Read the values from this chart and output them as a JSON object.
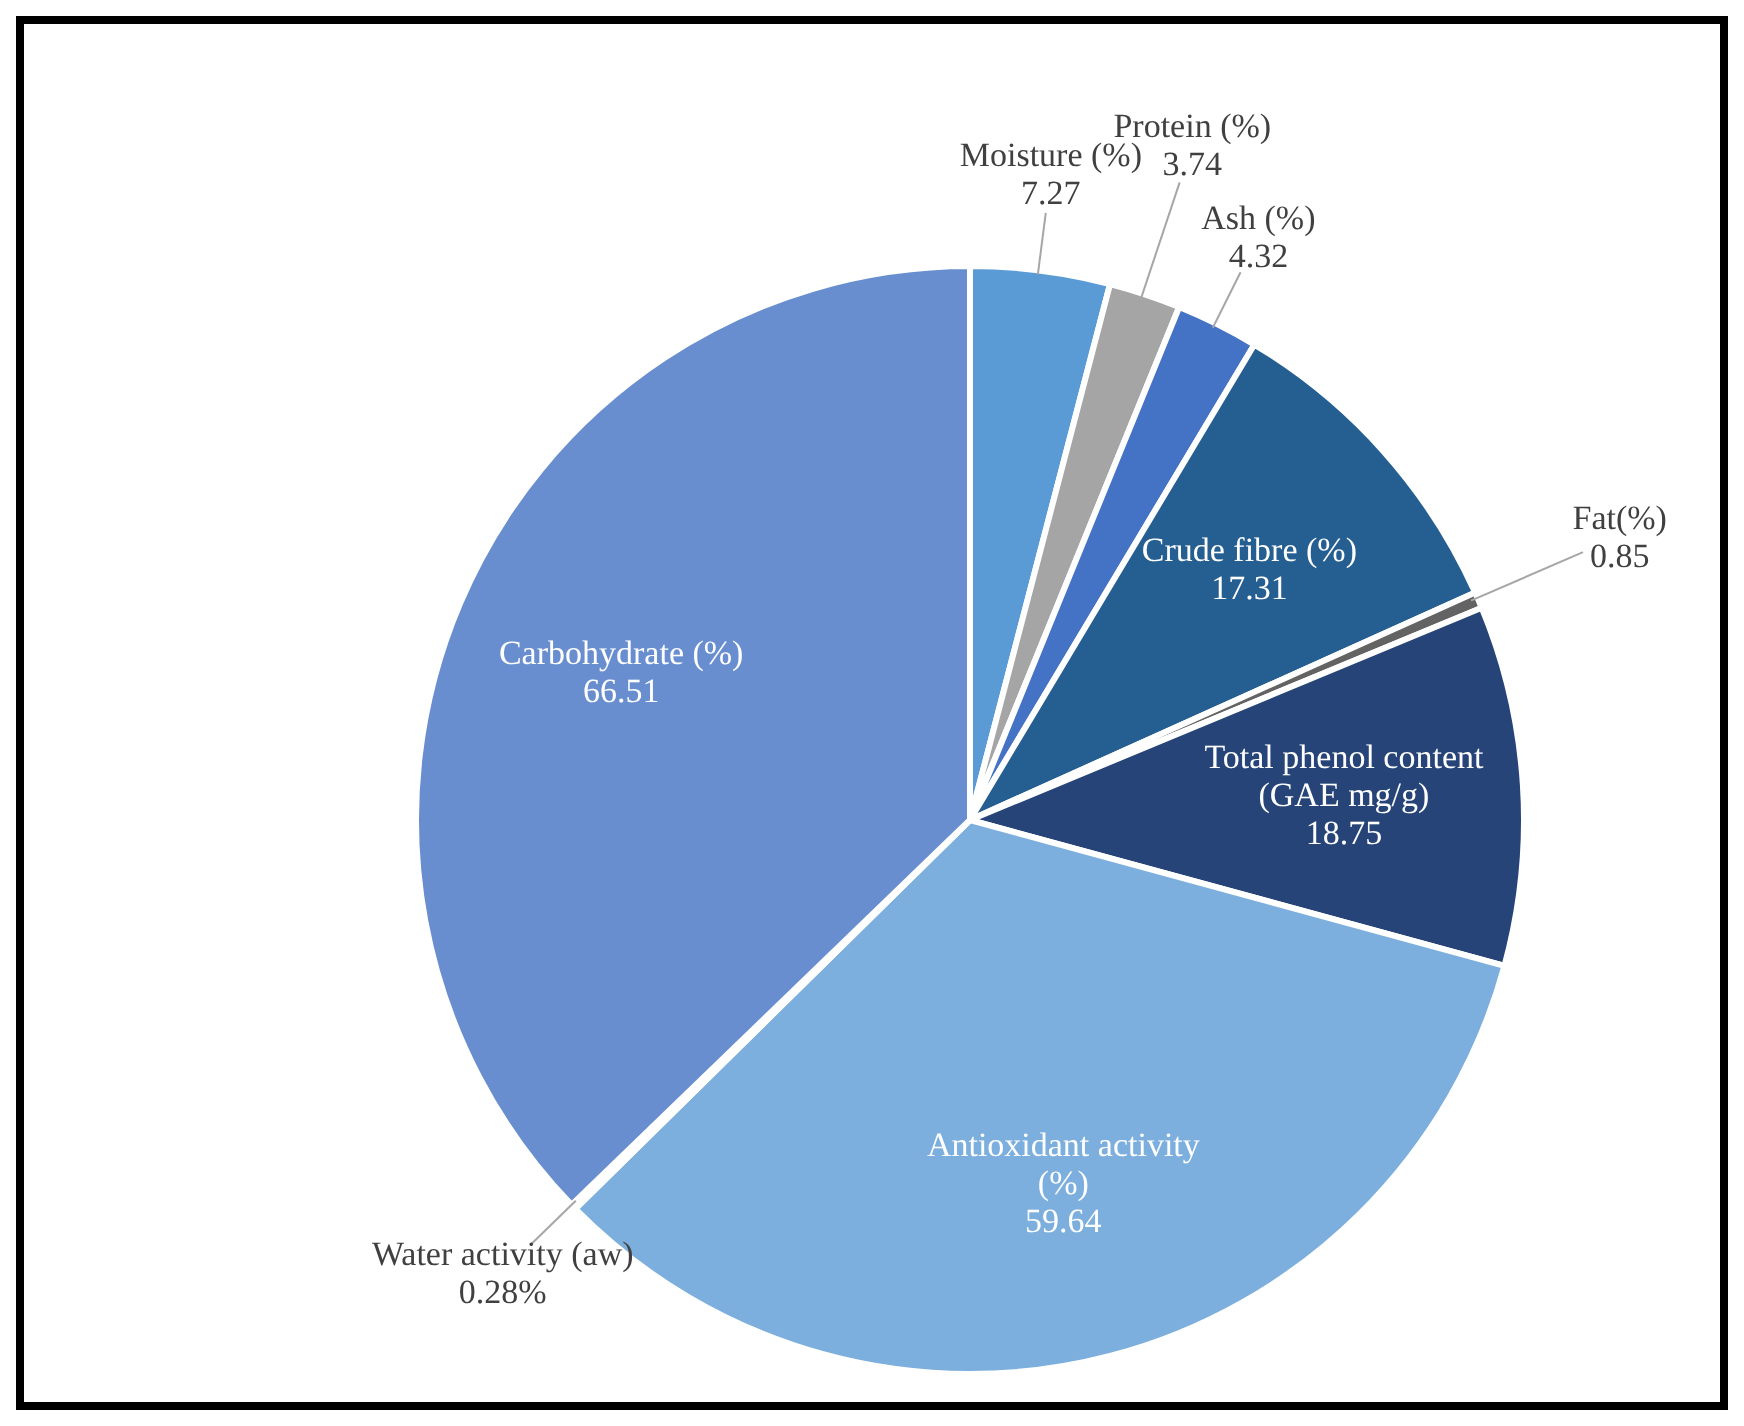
{
  "chart_data": {
    "type": "pie",
    "categories": [
      "Moisture (%)",
      "Protein (%)",
      "Ash (%)",
      "Crude fibre (%)",
      "Fat(%)",
      "Total phenol content (GAE mg/g)",
      "Antioxidant activity (%)",
      "Water activity (aw)",
      "Carbohydrate (%)"
    ],
    "values": [
      7.27,
      3.74,
      4.32,
      17.31,
      0.85,
      18.75,
      59.64,
      0.28,
      66.51
    ],
    "value_labels": [
      "7.27",
      "3.74",
      "4.32",
      "17.31",
      "0.85",
      "18.75",
      "59.64",
      "0.28%",
      "66.51"
    ],
    "colors": [
      "#5b9bd5",
      "#a5a5a5",
      "#4472c4",
      "#255e91",
      "#636363",
      "#264478",
      "#7cafdd",
      "#9e9e9e",
      "#698ed0"
    ]
  }
}
